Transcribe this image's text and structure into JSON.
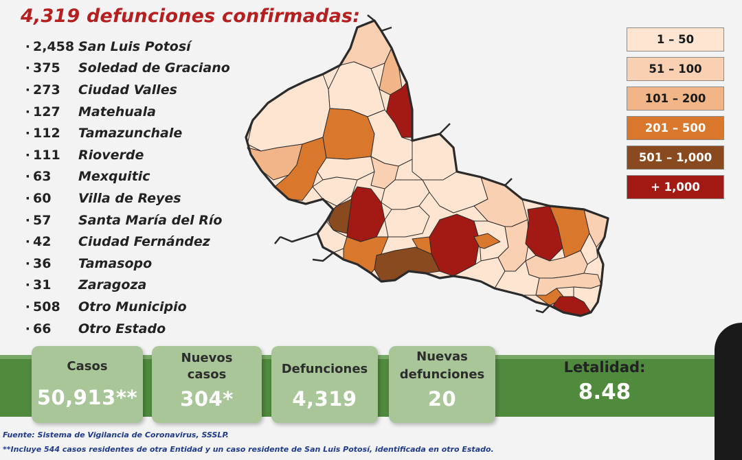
{
  "title": "4,319 defunciones confirmadas:",
  "municipalities": [
    {
      "count": "2,458",
      "name": "San Luis Potosí"
    },
    {
      "count": "375",
      "name": "Soledad de Graciano"
    },
    {
      "count": "273",
      "name": "Ciudad Valles"
    },
    {
      "count": "127",
      "name": "Matehuala"
    },
    {
      "count": "112",
      "name": "Tamazunchale"
    },
    {
      "count": "111",
      "name": "Rioverde"
    },
    {
      "count": "63",
      "name": "Mexquitic"
    },
    {
      "count": "60",
      "name": "Villa de Reyes"
    },
    {
      "count": "57",
      "name": "Santa María del Río"
    },
    {
      "count": "42",
      "name": "Ciudad Fernández"
    },
    {
      "count": "36",
      "name": "Tamasopo"
    },
    {
      "count": "31",
      "name": "Zaragoza"
    },
    {
      "count": "508",
      "name": "Otro Municipio"
    },
    {
      "count": "66",
      "name": "Otro Estado"
    }
  ],
  "legend": [
    {
      "label": "1 – 50",
      "color": "#fde5d2",
      "text": "#1a1a1a"
    },
    {
      "label": "51 – 100",
      "color": "#f9d0b1",
      "text": "#1a1a1a"
    },
    {
      "label": "101 – 200",
      "color": "#f1b588",
      "text": "#1a1a1a"
    },
    {
      "label": "201 – 500",
      "color": "#d9782d",
      "text": "#ffffff"
    },
    {
      "label": "501 – 1,000",
      "color": "#8a4a1f",
      "text": "#ffffff"
    },
    {
      "label": "+ 1,000",
      "color": "#a31a15",
      "text": "#ffffff"
    }
  ],
  "stats": {
    "casos": {
      "label": "Casos",
      "value": "50,913**"
    },
    "nuevos_casos": {
      "label1": "Nuevos",
      "label2": "casos",
      "value": "304*"
    },
    "defunciones": {
      "label": "Defunciones",
      "value": "4,319"
    },
    "nuevas_defunciones": {
      "label1": "Nuevas",
      "label2": "defunciones",
      "value": "20"
    },
    "letalidad": {
      "label": "Letalidad:",
      "value": "8.48"
    }
  },
  "footer": {
    "source": "Fuente: Sistema de Vigilancia de Coronavirus, SSSLP.",
    "note": "**Incluye 544 casos residentes de otra Entidad y un caso residente de San Luis Potosí, identificada en otro Estado."
  }
}
